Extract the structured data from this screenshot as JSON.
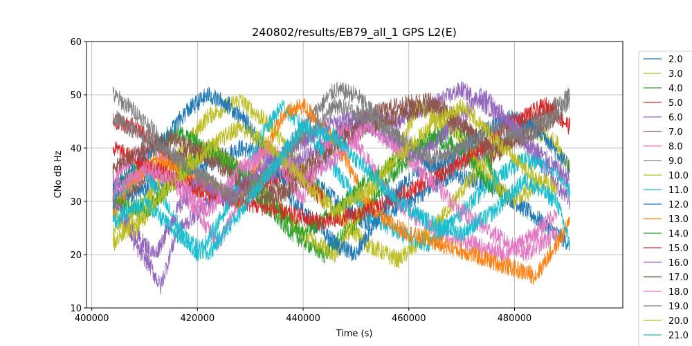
{
  "chart_data": {
    "type": "line",
    "title": "240802/results/EB79_all_1 GPS L2(E)",
    "xlabel": "Time (s)",
    "ylabel": "CNo dB Hz",
    "xlim": [
      399000,
      500500
    ],
    "ylim": [
      10,
      60
    ],
    "xticks": [
      {
        "value": 400000,
        "label": "400000"
      },
      {
        "value": 420000,
        "label": "420000"
      },
      {
        "value": 440000,
        "label": "440000"
      },
      {
        "value": 460000,
        "label": "460000"
      },
      {
        "value": 480000,
        "label": "480000"
      }
    ],
    "yticks": [
      {
        "value": 10,
        "label": "10"
      },
      {
        "value": 20,
        "label": "20"
      },
      {
        "value": 30,
        "label": "30"
      },
      {
        "value": 40,
        "label": "40"
      },
      {
        "value": 50,
        "label": "50"
      },
      {
        "value": 60,
        "label": "60"
      }
    ],
    "grid": true,
    "legend_position": "right (outside, clipped)",
    "series": [
      {
        "name": "2.0",
        "color": "#1f77b4",
        "x": [
          404000,
          412000,
          420000,
          428000,
          436000,
          444000,
          452000,
          460000,
          468000,
          476000,
          484000,
          490500
        ],
        "y": [
          30,
          33,
          36,
          40,
          38,
          32,
          26,
          30,
          35,
          33,
          27,
          22
        ]
      },
      {
        "name": "3.0",
        "color": "#bcbd22",
        "x": [
          404000,
          410000,
          416000,
          422000,
          428000,
          434000,
          440000,
          446000,
          452000,
          458000,
          464000,
          470000,
          476000,
          482000,
          488000,
          490500
        ],
        "y": [
          24,
          30,
          38,
          46,
          49,
          44,
          36,
          28,
          22,
          19,
          24,
          32,
          39,
          44,
          41,
          36
        ]
      },
      {
        "name": "4.0",
        "color": "#2ca02c",
        "x": [
          404000,
          408000,
          412000,
          416000,
          420000,
          426000,
          432000,
          438000,
          444000,
          450000,
          456000,
          462000,
          468000,
          474000,
          478000
        ],
        "y": [
          32,
          36,
          40,
          43,
          41,
          36,
          30,
          24,
          20,
          26,
          34,
          40,
          44,
          40,
          30
        ]
      },
      {
        "name": "5.0",
        "color": "#d62728",
        "x": [
          404000,
          408000,
          412000,
          416000,
          420000,
          426000,
          432000,
          438000,
          444000
        ],
        "y": [
          45,
          44,
          41,
          37,
          33,
          30,
          33,
          36,
          30
        ]
      },
      {
        "name": "6.0",
        "color": "#9467bd",
        "x": [
          404000,
          408000,
          411000,
          413000,
          416000,
          422000,
          428000,
          434000,
          440000,
          446000,
          452000,
          458000,
          464000,
          470000,
          476000,
          482000,
          488000,
          490500
        ],
        "y": [
          35,
          22,
          18,
          14,
          24,
          30,
          33,
          35,
          38,
          42,
          46,
          45,
          48,
          51,
          47,
          41,
          33,
          30
        ]
      },
      {
        "name": "7.0",
        "color": "#8c564b",
        "x": [
          404000,
          410000,
          416000,
          422000,
          428000,
          434000,
          440000,
          446000,
          452000,
          458000,
          464000,
          470000,
          476000,
          482000,
          488000
        ],
        "y": [
          30,
          34,
          38,
          40,
          36,
          32,
          36,
          42,
          46,
          48,
          49,
          45,
          38,
          44,
          48
        ]
      },
      {
        "name": "8.0",
        "color": "#e377c2",
        "x": [
          404000,
          408000,
          412000,
          416000,
          420000,
          424000,
          428000,
          432000,
          436000,
          440000,
          444000,
          448000,
          452000,
          456000,
          460000,
          466000,
          472000,
          478000,
          484000,
          488000
        ],
        "y": [
          34,
          38,
          40,
          33,
          28,
          22,
          30,
          40,
          36,
          30,
          40,
          44,
          38,
          32,
          28,
          24,
          22,
          20,
          24,
          28
        ]
      },
      {
        "name": "9.0",
        "color": "#7f7f7f",
        "x": [
          404000,
          408000,
          412000,
          416000,
          422000,
          428000,
          434000,
          440000,
          446000,
          450000,
          454000,
          460000,
          466000,
          472000,
          478000,
          484000,
          488000,
          490500
        ],
        "y": [
          50,
          47,
          43,
          38,
          34,
          30,
          36,
          44,
          51,
          50,
          46,
          40,
          36,
          38,
          42,
          45,
          48,
          50
        ]
      },
      {
        "name": "10.0",
        "color": "#bcbd22",
        "x": [
          404000,
          408000,
          412000,
          416000,
          422000,
          428000,
          434000,
          440000,
          446000,
          452000,
          458000,
          462000,
          468000,
          474000,
          480000,
          486000
        ],
        "y": [
          28,
          24,
          30,
          36,
          40,
          36,
          30,
          24,
          20,
          30,
          40,
          48,
          44,
          36,
          30,
          34
        ]
      },
      {
        "name": "11.0",
        "color": "#17becf",
        "x": [
          404000,
          410000,
          416000,
          420000,
          424000,
          428000,
          432000,
          436000,
          440000,
          446000,
          452000,
          458000,
          464000,
          470000,
          476000,
          482000,
          488000,
          490500
        ],
        "y": [
          30,
          36,
          26,
          20,
          26,
          34,
          42,
          48,
          44,
          36,
          28,
          24,
          22,
          28,
          34,
          38,
          36,
          32
        ]
      },
      {
        "name": "12.0",
        "color": "#1f77b4",
        "x": [
          404000,
          410000,
          414000,
          418000,
          422000,
          426000,
          430000,
          434000,
          438000,
          442000,
          446000,
          450000,
          456000,
          462000,
          468000,
          474000,
          480000,
          486000,
          490500
        ],
        "y": [
          32,
          38,
          42,
          47,
          50,
          48,
          44,
          38,
          30,
          26,
          22,
          20,
          30,
          36,
          38,
          43,
          46,
          42,
          36
        ]
      },
      {
        "name": "13.0",
        "color": "#ff7f0e",
        "x": [
          404000,
          408000,
          412000,
          416000,
          420000,
          424000,
          428000,
          432000,
          436000,
          440000,
          444000,
          448000,
          452000,
          456000,
          460000,
          466000,
          472000,
          478000,
          484000,
          488000,
          490500
        ],
        "y": [
          28,
          34,
          38,
          36,
          34,
          32,
          30,
          38,
          46,
          48,
          44,
          38,
          30,
          26,
          24,
          22,
          20,
          18,
          16,
          22,
          26
        ]
      },
      {
        "name": "14.0",
        "color": "#2ca02c",
        "x": [
          404000,
          410000,
          416000,
          422000,
          428000,
          434000,
          440000,
          446000,
          452000,
          458000,
          464000,
          470000,
          476000
        ],
        "y": [
          30,
          28,
          34,
          40,
          36,
          30,
          24,
          28,
          34,
          38,
          42,
          40,
          32
        ]
      },
      {
        "name": "15.0",
        "color": "#d62728",
        "x": [
          404000,
          412000,
          420000,
          428000,
          436000,
          444000,
          452000,
          460000,
          468000,
          474000,
          478000,
          482000,
          486000,
          490500
        ],
        "y": [
          40,
          36,
          32,
          30,
          28,
          26,
          28,
          32,
          36,
          40,
          44,
          46,
          48,
          44
        ]
      },
      {
        "name": "16.0",
        "color": "#9467bd",
        "x": [
          404000,
          408000,
          412000,
          416000,
          420000,
          426000,
          432000,
          438000,
          444000,
          450000,
          456000,
          462000,
          468000,
          474000,
          480000,
          486000,
          490500
        ],
        "y": [
          30,
          24,
          20,
          28,
          34,
          30,
          36,
          40,
          44,
          46,
          42,
          38,
          44,
          50,
          44,
          38,
          34
        ]
      },
      {
        "name": "17.0",
        "color": "#8c564b",
        "x": [
          404000,
          410000,
          416000,
          422000,
          428000,
          434000,
          440000,
          446000,
          452000,
          458000,
          464000,
          470000,
          476000,
          482000,
          488000
        ],
        "y": [
          36,
          40,
          42,
          38,
          34,
          30,
          34,
          40,
          44,
          46,
          48,
          44,
          40,
          42,
          46
        ]
      },
      {
        "name": "18.0",
        "color": "#e377c2",
        "x": [
          404000,
          410000,
          416000,
          422000,
          428000,
          434000,
          440000,
          446000,
          452000,
          458000,
          464000,
          470000,
          476000,
          482000,
          488000
        ],
        "y": [
          32,
          36,
          34,
          28,
          36,
          40,
          34,
          38,
          44,
          40,
          34,
          28,
          24,
          20,
          24
        ]
      },
      {
        "name": "19.0",
        "color": "#7f7f7f",
        "x": [
          404000,
          410000,
          416000,
          422000,
          428000,
          434000,
          440000,
          446000,
          452000,
          458000,
          464000,
          470000,
          476000,
          482000,
          488000,
          490500
        ],
        "y": [
          46,
          42,
          38,
          34,
          30,
          36,
          42,
          48,
          46,
          42,
          38,
          40,
          44,
          42,
          46,
          49
        ]
      },
      {
        "name": "20.0",
        "color": "#bcbd22",
        "x": [
          404000,
          410000,
          416000,
          422000,
          428000,
          434000,
          440000,
          446000,
          452000,
          458000,
          464000,
          470000,
          476000,
          482000,
          488000
        ],
        "y": [
          22,
          28,
          34,
          40,
          44,
          40,
          34,
          28,
          32,
          38,
          44,
          48,
          42,
          36,
          32
        ]
      },
      {
        "name": "21.0",
        "color": "#17becf",
        "x": [
          404000,
          410000,
          416000,
          422000,
          428000,
          434000,
          440000,
          446000,
          452000,
          458000,
          464000,
          470000,
          476000,
          482000,
          488000,
          490500
        ],
        "y": [
          26,
          30,
          24,
          20,
          28,
          36,
          44,
          42,
          36,
          30,
          26,
          24,
          28,
          34,
          30,
          22
        ]
      }
    ]
  }
}
